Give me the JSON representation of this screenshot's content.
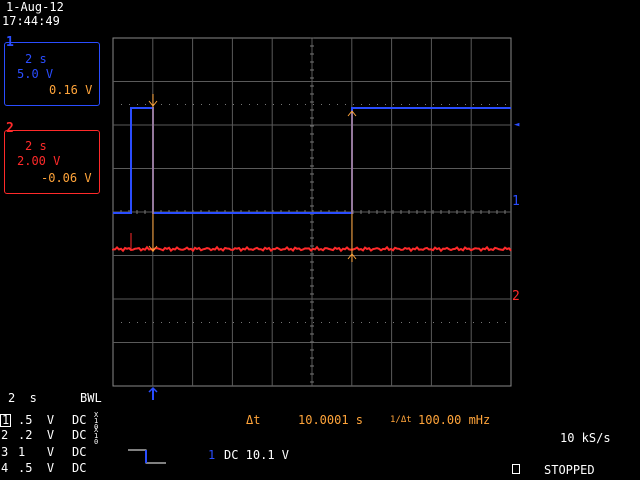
{
  "header": {
    "date": "1-Aug-12",
    "time": "17:44:49"
  },
  "ch1_box": {
    "marker": "1",
    "timebase": "2 s",
    "volts": "5.0 V",
    "reading": "0.16 V"
  },
  "ch2_box": {
    "marker": "2",
    "timebase": "2 s",
    "volts": "2.00 V",
    "reading": "-0.06 V"
  },
  "markers": {
    "ch1_level": "1",
    "ch2_level": "2",
    "ch1_arrow": "◄"
  },
  "bottom": {
    "timebase": "2  s",
    "bwl": "BWL",
    "channels": [
      {
        "num": "1",
        "volts": ".5  V",
        "coupling": "DC",
        "probe": "X10"
      },
      {
        "num": "2",
        "volts": ".2  V",
        "coupling": "DC",
        "probe": "X10"
      },
      {
        "num": "3",
        "volts": "1   V",
        "coupling": "DC",
        "probe": ""
      },
      {
        "num": "4",
        "volts": ".5  V",
        "coupling": "DC",
        "probe": ""
      }
    ],
    "delta_t_label": "Δt",
    "delta_t_value": "10.0001 s",
    "inv_label": "1/Δt",
    "inv_value": "100.00 mHz",
    "trigger_ch": "1",
    "trigger_text": "DC 10.1 V",
    "sample_rate": "10 kS/s",
    "status": "STOPPED"
  },
  "colors": {
    "ch1": "#2a4dff",
    "ch2": "#ff2a2a",
    "cursor": "#ffa43a",
    "grid": "#5a5a5a"
  }
}
